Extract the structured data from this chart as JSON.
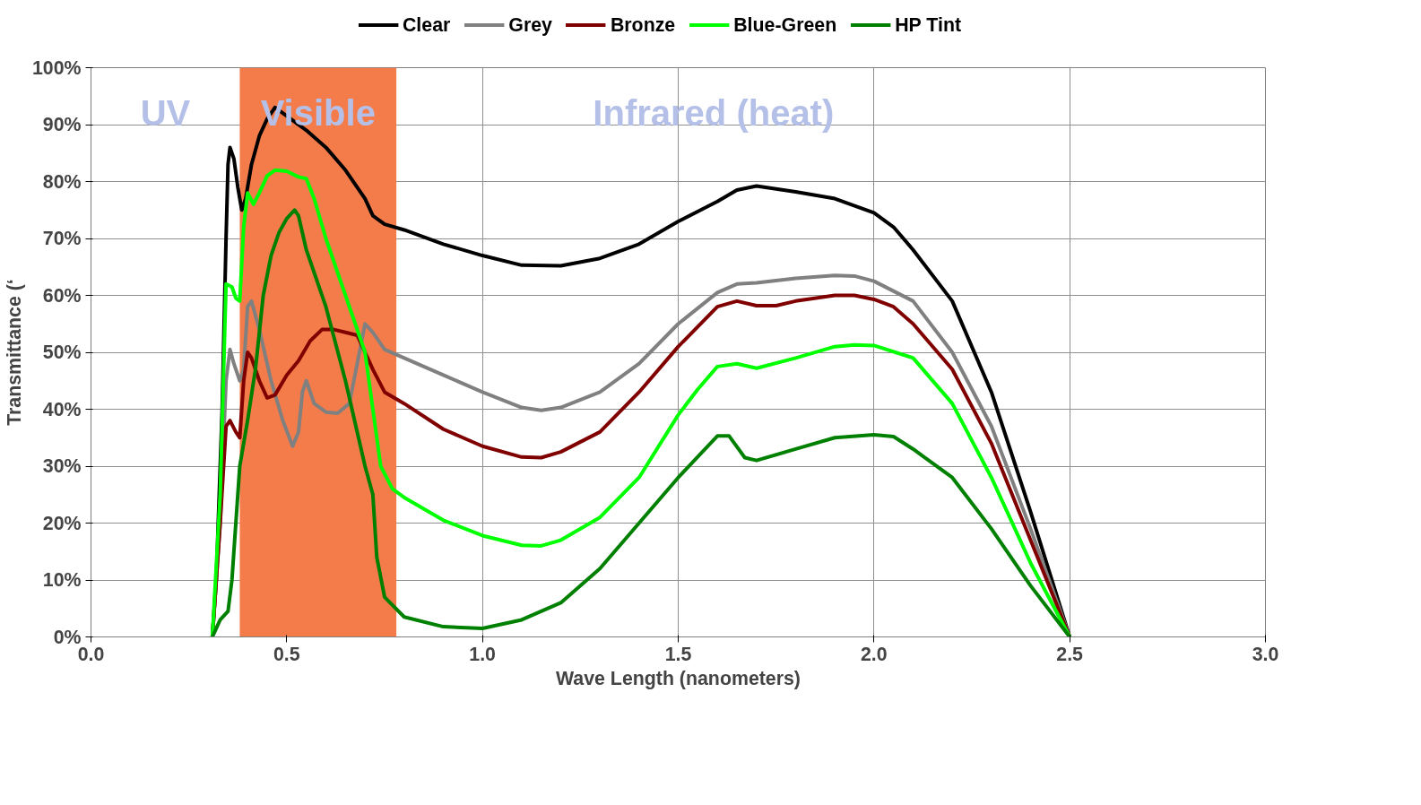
{
  "chart_data": {
    "type": "line",
    "xlabel": "Wave Length (nanometers)",
    "ylabel": "Transmittance (‘",
    "xlim": [
      0,
      3
    ],
    "ylim": [
      0,
      100
    ],
    "xticks": [
      {
        "value": 0,
        "label": "0.0"
      },
      {
        "value": 0.5,
        "label": "0.5"
      },
      {
        "value": 1,
        "label": "1.0"
      },
      {
        "value": 1.5,
        "label": "1.5"
      },
      {
        "value": 2,
        "label": "2.0"
      },
      {
        "value": 2.5,
        "label": "2.5"
      },
      {
        "value": 3,
        "label": "3.0"
      }
    ],
    "yticks": [
      {
        "value": 0,
        "label": "0%"
      },
      {
        "value": 10,
        "label": "10%"
      },
      {
        "value": 20,
        "label": "20%"
      },
      {
        "value": 30,
        "label": "30%"
      },
      {
        "value": 40,
        "label": "40%"
      },
      {
        "value": 50,
        "label": "50%"
      },
      {
        "value": 60,
        "label": "60%"
      },
      {
        "value": 70,
        "label": "70%"
      },
      {
        "value": 80,
        "label": "80%"
      },
      {
        "value": 90,
        "label": "90%"
      },
      {
        "value": 100,
        "label": "100%"
      }
    ],
    "grid": true,
    "legend": "top",
    "marker": "none",
    "line_style": "solid",
    "bands": [
      {
        "axis": "x",
        "from": 0.38,
        "to": 0.78,
        "label": "Visible",
        "color": "#f47c4a"
      }
    ],
    "annotations": [
      "UV",
      "Infrared (heat)"
    ],
    "series": [
      {
        "name": "Clear",
        "color": "#000000",
        "x": [
          0.31,
          0.32,
          0.335,
          0.345,
          0.35,
          0.355,
          0.365,
          0.375,
          0.385,
          0.395,
          0.41,
          0.43,
          0.45,
          0.47,
          0.5,
          0.55,
          0.6,
          0.65,
          0.7,
          0.72,
          0.75,
          0.8,
          0.9,
          1.0,
          1.1,
          1.2,
          1.3,
          1.4,
          1.5,
          1.6,
          1.65,
          1.7,
          1.8,
          1.9,
          2.0,
          2.05,
          2.1,
          2.2,
          2.3,
          2.4,
          2.5
        ],
        "values": [
          0,
          10,
          40,
          70,
          83,
          86,
          84,
          79,
          75,
          77,
          83,
          88,
          91,
          93,
          91.5,
          89,
          86,
          82,
          77,
          74,
          72.5,
          71.5,
          69,
          67,
          65.3,
          65.2,
          66.5,
          69,
          73,
          76.5,
          78.5,
          79.2,
          78.2,
          77,
          74.5,
          72,
          68,
          59,
          43,
          22,
          0
        ]
      },
      {
        "name": "Grey",
        "color": "#808080",
        "x": [
          0.31,
          0.33,
          0.345,
          0.355,
          0.365,
          0.38,
          0.39,
          0.4,
          0.41,
          0.43,
          0.46,
          0.49,
          0.515,
          0.53,
          0.54,
          0.55,
          0.57,
          0.6,
          0.63,
          0.66,
          0.68,
          0.7,
          0.72,
          0.75,
          0.8,
          0.9,
          1.0,
          1.1,
          1.15,
          1.2,
          1.3,
          1.4,
          1.5,
          1.6,
          1.65,
          1.7,
          1.8,
          1.9,
          1.95,
          2.0,
          2.1,
          2.2,
          2.3,
          2.4,
          2.5
        ],
        "values": [
          0,
          20,
          45,
          50.5,
          48,
          45,
          47,
          58,
          59,
          54,
          45,
          38,
          33.5,
          36,
          43,
          45,
          41,
          39.5,
          39.3,
          41,
          48,
          55,
          53.5,
          50.5,
          49,
          46,
          43,
          40.3,
          39.8,
          40.3,
          43,
          48,
          55,
          60.5,
          62,
          62.2,
          63,
          63.5,
          63.4,
          62.5,
          59,
          50,
          37,
          19,
          0
        ]
      },
      {
        "name": "Bronze",
        "color": "#800000",
        "x": [
          0.31,
          0.33,
          0.345,
          0.355,
          0.37,
          0.38,
          0.39,
          0.4,
          0.41,
          0.43,
          0.45,
          0.47,
          0.5,
          0.53,
          0.56,
          0.59,
          0.62,
          0.65,
          0.68,
          0.7,
          0.72,
          0.75,
          0.8,
          0.9,
          1.0,
          1.1,
          1.15,
          1.2,
          1.3,
          1.4,
          1.5,
          1.6,
          1.65,
          1.7,
          1.75,
          1.8,
          1.9,
          1.95,
          2.0,
          2.05,
          2.1,
          2.2,
          2.3,
          2.4,
          2.5
        ],
        "values": [
          0,
          20,
          37,
          38,
          36,
          35,
          45,
          50,
          49,
          45,
          42,
          42.5,
          46,
          48.5,
          52,
          54,
          54,
          53.5,
          53,
          50,
          47,
          43,
          41,
          36.5,
          33.5,
          31.6,
          31.5,
          32.5,
          36,
          43,
          51,
          58,
          59,
          58.2,
          58.2,
          59,
          60,
          60,
          59.3,
          58,
          55,
          47,
          34,
          17,
          0
        ]
      },
      {
        "name": "Blue-Green",
        "color": "#00ff00",
        "x": [
          0.31,
          0.33,
          0.345,
          0.36,
          0.37,
          0.38,
          0.39,
          0.4,
          0.415,
          0.43,
          0.45,
          0.47,
          0.5,
          0.53,
          0.55,
          0.57,
          0.6,
          0.65,
          0.7,
          0.72,
          0.74,
          0.77,
          0.8,
          0.9,
          1.0,
          1.1,
          1.15,
          1.2,
          1.3,
          1.4,
          1.5,
          1.55,
          1.6,
          1.65,
          1.7,
          1.8,
          1.9,
          1.95,
          2.0,
          2.1,
          2.2,
          2.3,
          2.4,
          2.5
        ],
        "values": [
          0,
          25,
          62,
          61.5,
          59.5,
          59,
          72,
          78,
          76,
          78,
          81,
          82,
          81.8,
          80.8,
          80.5,
          77,
          70,
          60,
          50,
          40,
          30,
          26,
          24.5,
          20.5,
          17.8,
          16.1,
          16,
          17,
          21,
          28,
          39,
          43.5,
          47.5,
          48,
          47.2,
          49,
          51,
          51.3,
          51.2,
          49,
          41,
          28,
          13,
          0
        ]
      },
      {
        "name": "HP Tint",
        "color": "#008000",
        "x": [
          0.31,
          0.33,
          0.35,
          0.36,
          0.38,
          0.4,
          0.42,
          0.44,
          0.46,
          0.48,
          0.5,
          0.52,
          0.53,
          0.55,
          0.6,
          0.65,
          0.7,
          0.72,
          0.73,
          0.75,
          0.8,
          0.9,
          1.0,
          1.1,
          1.2,
          1.3,
          1.4,
          1.5,
          1.6,
          1.63,
          1.67,
          1.7,
          1.8,
          1.9,
          2.0,
          2.05,
          2.1,
          2.2,
          2.3,
          2.4,
          2.5
        ],
        "values": [
          0,
          3,
          4.5,
          10,
          30,
          38,
          47,
          60,
          67,
          71,
          73.5,
          75,
          74,
          68,
          58,
          45,
          30,
          25,
          14,
          7,
          3.5,
          1.8,
          1.5,
          3,
          6,
          12,
          20,
          28,
          35.3,
          35.3,
          31.5,
          31,
          33,
          35,
          35.5,
          35.2,
          33,
          28,
          19,
          9,
          0
        ]
      }
    ]
  }
}
